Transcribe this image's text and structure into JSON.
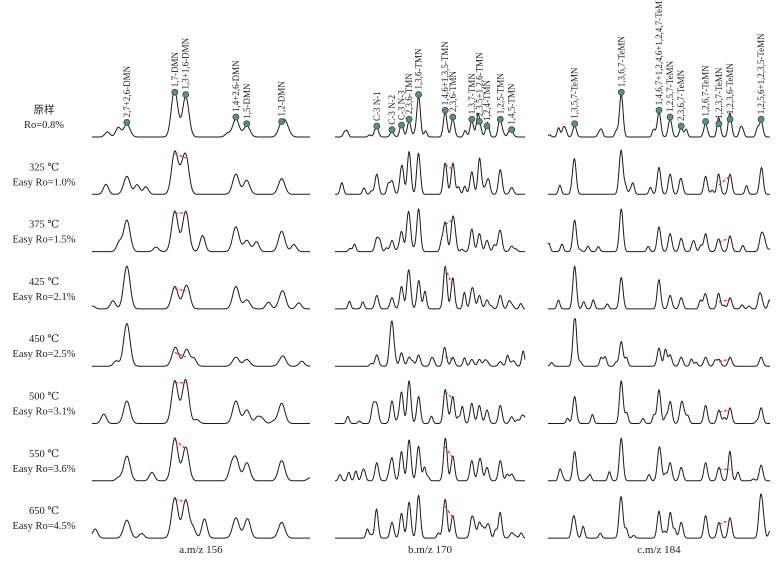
{
  "chart_data": {
    "type": "line",
    "rows": [
      {
        "line1": "原样",
        "line2": "Ro=0.8%"
      },
      {
        "line1": "325 ℃",
        "line2": "Easy Ro=1.0%"
      },
      {
        "line1": "375 ℃",
        "line2": "Easy Ro=1.5%"
      },
      {
        "line1": "425 ℃",
        "line2": "Easy Ro=2.1%"
      },
      {
        "line1": "450 ℃",
        "line2": "Easy Ro=2.5%"
      },
      {
        "line1": "500 ℃",
        "line2": "Easy Ro=3.1%"
      },
      {
        "line1": "550 ℃",
        "line2": "Easy Ro=3.6%"
      },
      {
        "line1": "650 ℃",
        "line2": "Easy Ro=4.5%"
      }
    ],
    "panels": [
      {
        "label": "a.m/z 156",
        "peaks": [
          "2,7+2,6-DMN",
          "1,7-DMN",
          "1,3+1,6-DMN",
          "1,4+2,6-DMN",
          "1,5-DMN",
          "1,2-DMN"
        ],
        "positions": [
          0.16,
          0.38,
          0.43,
          0.66,
          0.71,
          0.87
        ],
        "heights": [
          [
            0.28,
            0.95,
            0.9,
            0.4,
            0.25,
            0.3
          ],
          [
            0.4,
            0.95,
            0.85,
            0.45,
            0.25,
            0.35
          ],
          [
            0.7,
            0.9,
            0.9,
            0.55,
            0.25,
            0.45
          ],
          [
            0.95,
            0.5,
            0.45,
            0.5,
            0.2,
            0.3
          ],
          [
            0.95,
            0.35,
            0.25,
            0.2,
            0.15,
            0.15
          ],
          [
            0.5,
            0.95,
            0.95,
            0.5,
            0.3,
            0.45
          ],
          [
            0.55,
            0.95,
            0.75,
            0.5,
            0.35,
            0.45
          ],
          [
            0.4,
            0.9,
            0.85,
            0.45,
            0.3,
            0.35
          ]
        ]
      },
      {
        "label": "b.m/z 170",
        "peaks": [
          "C-3 N-1",
          "C-3 N-2",
          "C-3 N-3",
          "2,3,6-TMN",
          "1,3,6-TMN",
          "1,4,6+1,3,5-TMN",
          "2,3,6-TMN",
          "1,3,7-TMN",
          "2,3,5+1,2,6-TMN",
          "1,2,4-TMN",
          "1,2,5-TMN",
          "1,4,5-TMN"
        ],
        "positions": [
          0.22,
          0.3,
          0.35,
          0.39,
          0.44,
          0.58,
          0.62,
          0.72,
          0.76,
          0.8,
          0.87,
          0.93
        ],
        "heights": [
          [
            0.2,
            0.12,
            0.22,
            0.35,
            0.9,
            0.55,
            0.4,
            0.35,
            0.3,
            0.2,
            0.35,
            0.12
          ],
          [
            0.45,
            0.3,
            0.55,
            0.95,
            0.85,
            0.7,
            0.6,
            0.5,
            0.45,
            0.25,
            0.55,
            0.15
          ],
          [
            0.3,
            0.25,
            0.45,
            0.7,
            0.95,
            0.65,
            0.75,
            0.5,
            0.4,
            0.25,
            0.45,
            0.12
          ],
          [
            0.3,
            0.25,
            0.5,
            0.75,
            0.45,
            0.95,
            0.55,
            0.4,
            0.3,
            0.2,
            0.3,
            0.1
          ],
          [
            0.25,
            0.95,
            0.3,
            0.2,
            0.25,
            0.25,
            0.2,
            0.15,
            0.15,
            0.1,
            0.1,
            0.08
          ],
          [
            0.4,
            0.5,
            0.7,
            0.95,
            0.6,
            0.75,
            0.6,
            0.45,
            0.4,
            0.3,
            0.4,
            0.15
          ],
          [
            0.4,
            0.5,
            0.65,
            0.9,
            0.75,
            0.8,
            0.55,
            0.45,
            0.4,
            0.3,
            0.45,
            0.15
          ],
          [
            0.3,
            0.35,
            0.55,
            0.8,
            0.95,
            0.75,
            0.5,
            0.45,
            0.35,
            0.25,
            0.4,
            0.12
          ]
        ]
      },
      {
        "label": "c.m/z 184",
        "peaks": [
          "1,3,5,7-TeMN",
          "1,3,6,7-TeMN",
          "1,4,6,7+1,2,4,6+1,2,4,7-TeMN",
          "1,2,5,7-TeMN",
          "2,3,6,7-TeMN",
          "1,2,6,7-TeMN",
          "1,2,3,7-TeMN",
          "1,2,3,6-TeMN",
          "1,2,5,6+1,2,3,5-TeMN"
        ],
        "positions": [
          0.12,
          0.33,
          0.5,
          0.55,
          0.6,
          0.71,
          0.77,
          0.82,
          0.96
        ],
        "heights": [
          [
            0.25,
            0.95,
            0.55,
            0.4,
            0.2,
            0.3,
            0.25,
            0.35,
            0.35
          ],
          [
            0.55,
            0.95,
            0.6,
            0.45,
            0.3,
            0.4,
            0.25,
            0.45,
            0.45
          ],
          [
            0.7,
            0.95,
            0.55,
            0.4,
            0.3,
            0.4,
            0.25,
            0.35,
            0.35
          ],
          [
            0.95,
            0.7,
            0.55,
            0.3,
            0.25,
            0.3,
            0.2,
            0.25,
            0.25
          ],
          [
            0.95,
            0.55,
            0.4,
            0.25,
            0.2,
            0.2,
            0.15,
            0.2,
            0.2
          ],
          [
            0.6,
            0.95,
            0.75,
            0.45,
            0.35,
            0.4,
            0.3,
            0.35,
            0.35
          ],
          [
            0.65,
            0.95,
            0.65,
            0.4,
            0.3,
            0.4,
            0.3,
            0.3,
            0.35
          ],
          [
            0.35,
            0.85,
            0.6,
            0.45,
            0.35,
            0.5,
            0.35,
            0.45,
            0.9
          ]
        ]
      }
    ],
    "grid": false,
    "colors": {
      "trace": "#1a1a1a",
      "marker": "#5f8f84",
      "dashed": "#e0302c"
    }
  }
}
